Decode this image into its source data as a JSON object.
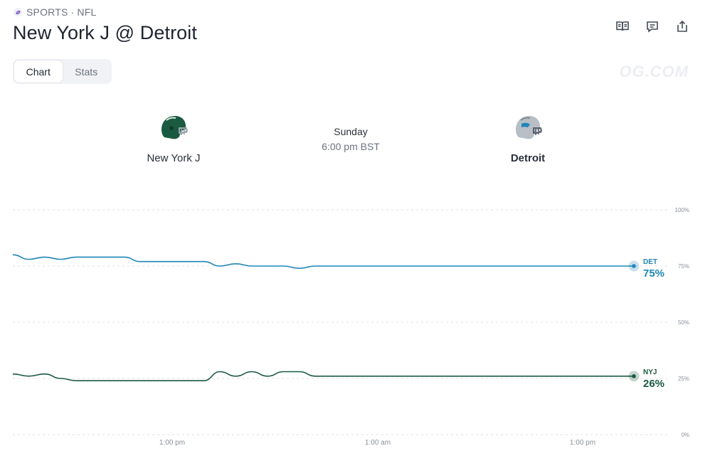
{
  "breadcrumb": {
    "category": "SPORTS",
    "separator": "·",
    "league": "NFL",
    "icon": "football-icon"
  },
  "title": "New York J @ Detroit",
  "toolbar": {
    "icons": [
      "rules-book-icon",
      "comment-icon",
      "share-icon"
    ]
  },
  "tabs": [
    {
      "label": "Chart",
      "active": true
    },
    {
      "label": "Stats",
      "active": false
    }
  ],
  "watermark": "OG.COM",
  "matchup": {
    "away": {
      "name": "New York J",
      "icon": "jets-helmet-icon",
      "color": "#1a5a40"
    },
    "home": {
      "name": "Detroit",
      "icon": "lions-helmet-icon",
      "color": "#1f86b8"
    },
    "day": "Sunday",
    "time": "6:00 pm BST"
  },
  "chart_data": {
    "type": "line",
    "yticks": [
      "100%",
      "75%",
      "50%",
      "25%",
      "0%"
    ],
    "ylim": [
      0,
      100
    ],
    "xticks": [
      "1:00 pm",
      "1:00 am",
      "1:00 pm"
    ],
    "grid": true,
    "series": [
      {
        "name": "DET",
        "color": "#1f86b8",
        "final_label": "75%",
        "values": [
          80,
          78,
          79,
          78,
          79,
          79,
          79,
          79,
          77,
          77,
          77,
          77,
          77,
          75,
          76,
          75,
          75,
          75,
          74,
          75,
          75,
          75,
          75,
          75,
          75,
          75,
          75,
          75,
          75,
          75,
          75,
          75,
          75,
          75,
          75,
          75,
          75,
          75,
          75,
          75
        ]
      },
      {
        "name": "NYJ",
        "color": "#1a5a40",
        "final_label": "26%",
        "values": [
          27,
          26,
          27,
          25,
          24,
          24,
          24,
          24,
          24,
          24,
          24,
          24,
          24,
          28,
          26,
          28,
          26,
          28,
          28,
          26,
          26,
          26,
          26,
          26,
          26,
          26,
          26,
          26,
          26,
          26,
          26,
          26,
          26,
          26,
          26,
          26,
          26,
          26,
          26,
          26
        ]
      }
    ]
  }
}
